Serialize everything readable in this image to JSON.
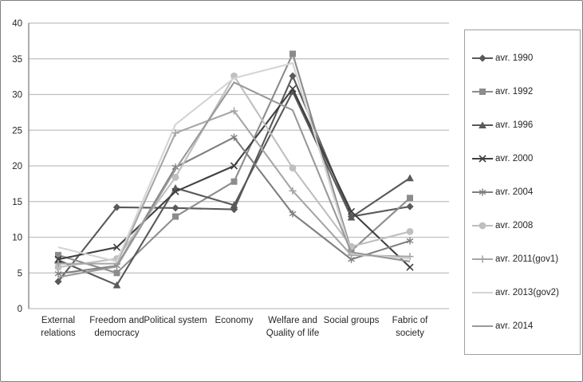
{
  "figure": {
    "background": "#ffffff",
    "border_color": "#808080",
    "gridline_color": "#bfbfbf",
    "axis_color": "#808080"
  },
  "chart_data": {
    "type": "line",
    "title": "",
    "xlabel": "",
    "ylabel": "",
    "grid": true,
    "legend_position": "right",
    "y_axis": {
      "min": 0,
      "max": 40,
      "step": 5,
      "tick_labels": [
        "0",
        "5",
        "10",
        "15",
        "20",
        "25",
        "30",
        "35",
        "40"
      ]
    },
    "categories": [
      "External\nrelations",
      "Freedom and\ndemocracy",
      "Political system",
      "Economy",
      "Welfare and\nQuality of life",
      "Social groups",
      "Fabric of\nsociety"
    ],
    "series": [
      {
        "name": "avr. 1990",
        "marker": "diamond",
        "color": "#595959",
        "values": [
          3.8,
          14.2,
          14.1,
          13.9,
          32.6,
          12.9,
          14.3
        ]
      },
      {
        "name": "avr. 1992",
        "marker": "square",
        "color": "#8c8c8c",
        "values": [
          7.5,
          5.0,
          12.9,
          17.8,
          35.7,
          8.1,
          15.5
        ]
      },
      {
        "name": "avr. 1996",
        "marker": "triangle",
        "color": "#595959",
        "values": [
          6.8,
          3.3,
          16.9,
          14.5,
          30.4,
          12.8,
          18.3
        ]
      },
      {
        "name": "avr. 2000",
        "marker": "x",
        "color": "#404040",
        "values": [
          6.9,
          8.6,
          16.4,
          20.0,
          30.8,
          13.6,
          5.8
        ]
      },
      {
        "name": "avr. 2004",
        "marker": "asterisk",
        "color": "#7f7f7f",
        "values": [
          4.9,
          6.0,
          19.8,
          24.0,
          13.3,
          6.9,
          9.5
        ]
      },
      {
        "name": "avr. 2008",
        "marker": "circle",
        "color": "#bfbfbf",
        "values": [
          5.8,
          7.0,
          18.4,
          32.6,
          19.7,
          8.7,
          10.8
        ]
      },
      {
        "name": "avr. 2011(gov1)",
        "marker": "plus",
        "color": "#a6a6a6",
        "values": [
          6.3,
          6.3,
          24.6,
          27.7,
          16.5,
          7.5,
          7.3
        ]
      },
      {
        "name": "avr. 2013(gov2)",
        "marker": "none",
        "color": "#d4d4d4",
        "values": [
          8.6,
          6.6,
          25.8,
          32.3,
          34.4,
          7.7,
          7.0
        ]
      },
      {
        "name": "avr. 2014",
        "marker": "none",
        "color": "#999999",
        "values": [
          4.4,
          5.9,
          19.5,
          31.7,
          27.8,
          7.9,
          6.6
        ]
      }
    ]
  }
}
